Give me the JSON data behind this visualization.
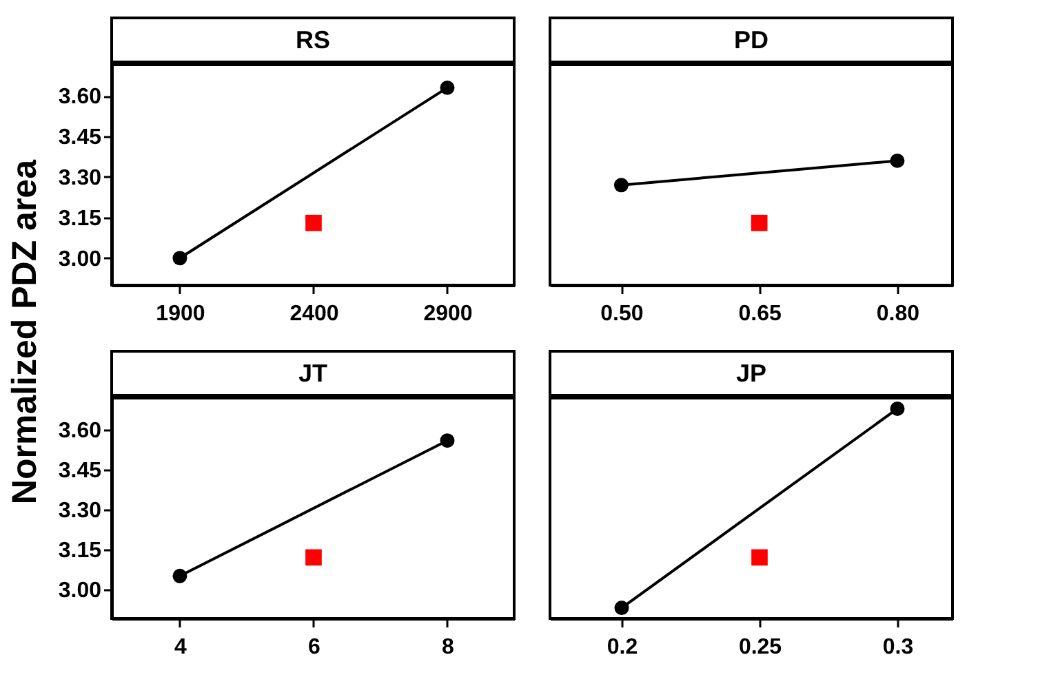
{
  "chart_data": [
    {
      "type": "line",
      "title": "RS",
      "ylabel": "Normalized PDZ area",
      "x": [
        1900,
        2900
      ],
      "xlim": [
        1645,
        3150
      ],
      "xticks": [
        1900,
        2400,
        2900
      ],
      "ylim": [
        2.9,
        3.715
      ],
      "yticks": [
        {
          "value": 3.0,
          "label": "3.00"
        },
        {
          "value": 3.15,
          "label": "3.15"
        },
        {
          "value": 3.3,
          "label": "3.30"
        },
        {
          "value": 3.45,
          "label": "3.45"
        },
        {
          "value": 3.6,
          "label": "3.60"
        }
      ],
      "marker": "circle",
      "series": [
        {
          "color": "#000000",
          "values": [
            3.0,
            3.63
          ]
        },
        {
          "type": "scatter",
          "marker": "square",
          "color": "#ff0000",
          "x": [
            2400
          ],
          "values": [
            3.13
          ]
        }
      ]
    },
    {
      "type": "line",
      "title": "PD",
      "x": [
        0.5,
        0.8
      ],
      "xlim": [
        0.4225,
        0.86
      ],
      "xticks": [
        {
          "value": 0.5,
          "label": "0.50"
        },
        0.65,
        {
          "value": 0.8,
          "label": "0.80"
        }
      ],
      "ylim": [
        2.9,
        3.715
      ],
      "tick_labels": "x",
      "marker": "circle",
      "series": [
        {
          "color": "#000000",
          "values": [
            3.27,
            3.36
          ]
        },
        {
          "type": "scatter",
          "marker": "square",
          "color": "#ff0000",
          "x": [
            0.65
          ],
          "values": [
            3.13
          ]
        }
      ]
    },
    {
      "type": "line",
      "title": "JT",
      "x": [
        4,
        8
      ],
      "xlim": [
        2.98,
        9
      ],
      "xticks": [
        4,
        6,
        8
      ],
      "ylim": [
        2.89,
        3.72
      ],
      "yticks": [
        {
          "value": 3.0,
          "label": "3.00"
        },
        {
          "value": 3.15,
          "label": "3.15"
        },
        {
          "value": 3.3,
          "label": "3.30"
        },
        {
          "value": 3.45,
          "label": "3.45"
        },
        {
          "value": 3.6,
          "label": "3.60"
        }
      ],
      "marker": "circle",
      "series": [
        {
          "color": "#000000",
          "values": [
            3.05,
            3.56
          ]
        },
        {
          "type": "scatter",
          "marker": "square",
          "color": "#ff0000",
          "x": [
            6
          ],
          "values": [
            3.12
          ]
        }
      ]
    },
    {
      "type": "line",
      "title": "JP",
      "x": [
        0.2,
        0.3
      ],
      "xlim": [
        0.174,
        0.32
      ],
      "xticks": [
        0.2,
        0.25,
        0.3
      ],
      "ylim": [
        2.89,
        3.72
      ],
      "tick_labels": "x",
      "marker": "circle",
      "series": [
        {
          "color": "#000000",
          "values": [
            2.93,
            3.68
          ]
        },
        {
          "type": "scatter",
          "marker": "square",
          "color": "#ff0000",
          "x": [
            0.25
          ],
          "values": [
            3.12
          ]
        }
      ]
    }
  ]
}
